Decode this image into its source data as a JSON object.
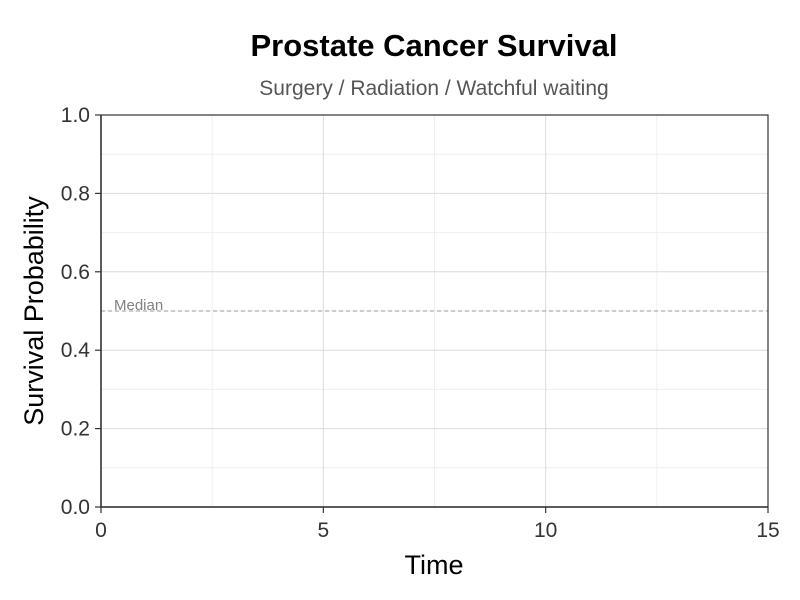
{
  "chart_data": {
    "type": "line",
    "title": "Prostate Cancer Survival",
    "subtitle": "Surgery / Radiation / Watchful waiting",
    "xlabel": "Time",
    "ylabel": "Survival Probability",
    "xlim": [
      0,
      15
    ],
    "ylim": [
      0,
      1
    ],
    "x_ticks": [
      0,
      5,
      10,
      15
    ],
    "x_tick_labels": [
      "0",
      "5",
      "10",
      "15"
    ],
    "x_minor_gridlines": [
      2.5,
      7.5,
      12.5
    ],
    "y_ticks": [
      0,
      0.2,
      0.4,
      0.6,
      0.8,
      1.0
    ],
    "y_tick_labels": [
      "0.0",
      "0.2",
      "0.4",
      "0.6",
      "0.8",
      "1.0"
    ],
    "y_minor_gridlines": [
      0.1,
      0.3,
      0.5,
      0.7,
      0.9
    ],
    "grid": true,
    "series": [],
    "reference_line": {
      "orientation": "horizontal",
      "y": 0.5,
      "style": "dashed",
      "label": "Median",
      "color": "#999999"
    },
    "colors": {
      "grid_major": "#dcdcdc",
      "grid_minor": "#efefef",
      "panel_border": "#333333",
      "axis_line": "#333333"
    }
  }
}
